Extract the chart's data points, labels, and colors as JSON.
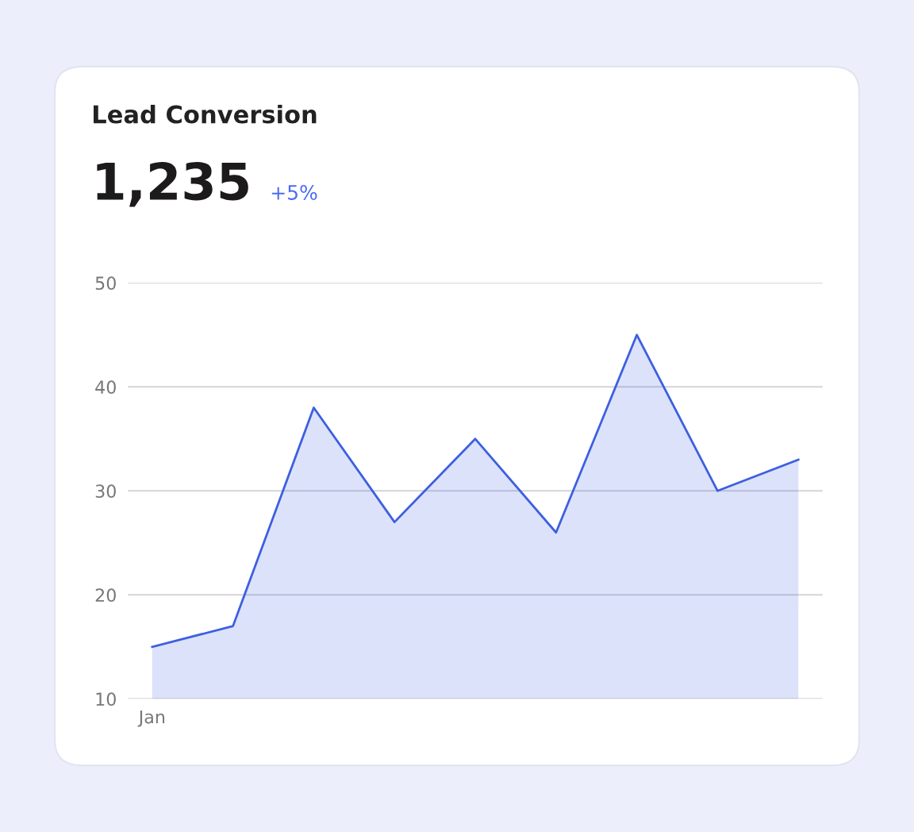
{
  "chart_data": {
    "type": "area",
    "title": "Lead Conversion",
    "annotations": [
      "1,235",
      "+5%"
    ],
    "categories": [
      "Jan",
      null,
      null,
      null,
      null,
      null,
      null,
      null,
      null
    ],
    "series": [
      {
        "color": "#3d5fe0",
        "values": [
          15,
          17,
          38,
          27,
          35,
          26,
          45,
          30,
          33
        ]
      }
    ],
    "ylim": [
      10,
      50
    ],
    "yticks": [
      10,
      20,
      30,
      40,
      50
    ],
    "grid": "y",
    "legend": false,
    "marker": "none",
    "line_style": "solid"
  }
}
